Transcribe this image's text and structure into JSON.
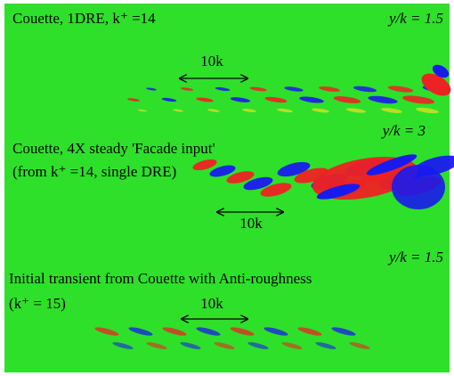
{
  "panels": [
    {
      "title_lines": [
        "Couette, 1DRE, k⁺ =14"
      ],
      "location": "y/k = 1.5",
      "scale": "10k"
    },
    {
      "title_lines": [
        "Couette, 4X steady 'Facade input'",
        "(from k⁺ =14, single DRE)"
      ],
      "location": "y/k = 3",
      "scale": "10k"
    },
    {
      "title_lines": [
        "Initial transient from Couette with Anti-roughness",
        "(k⁺ = 15)"
      ],
      "location": "y/k = 1.5",
      "scale": "10k"
    }
  ]
}
